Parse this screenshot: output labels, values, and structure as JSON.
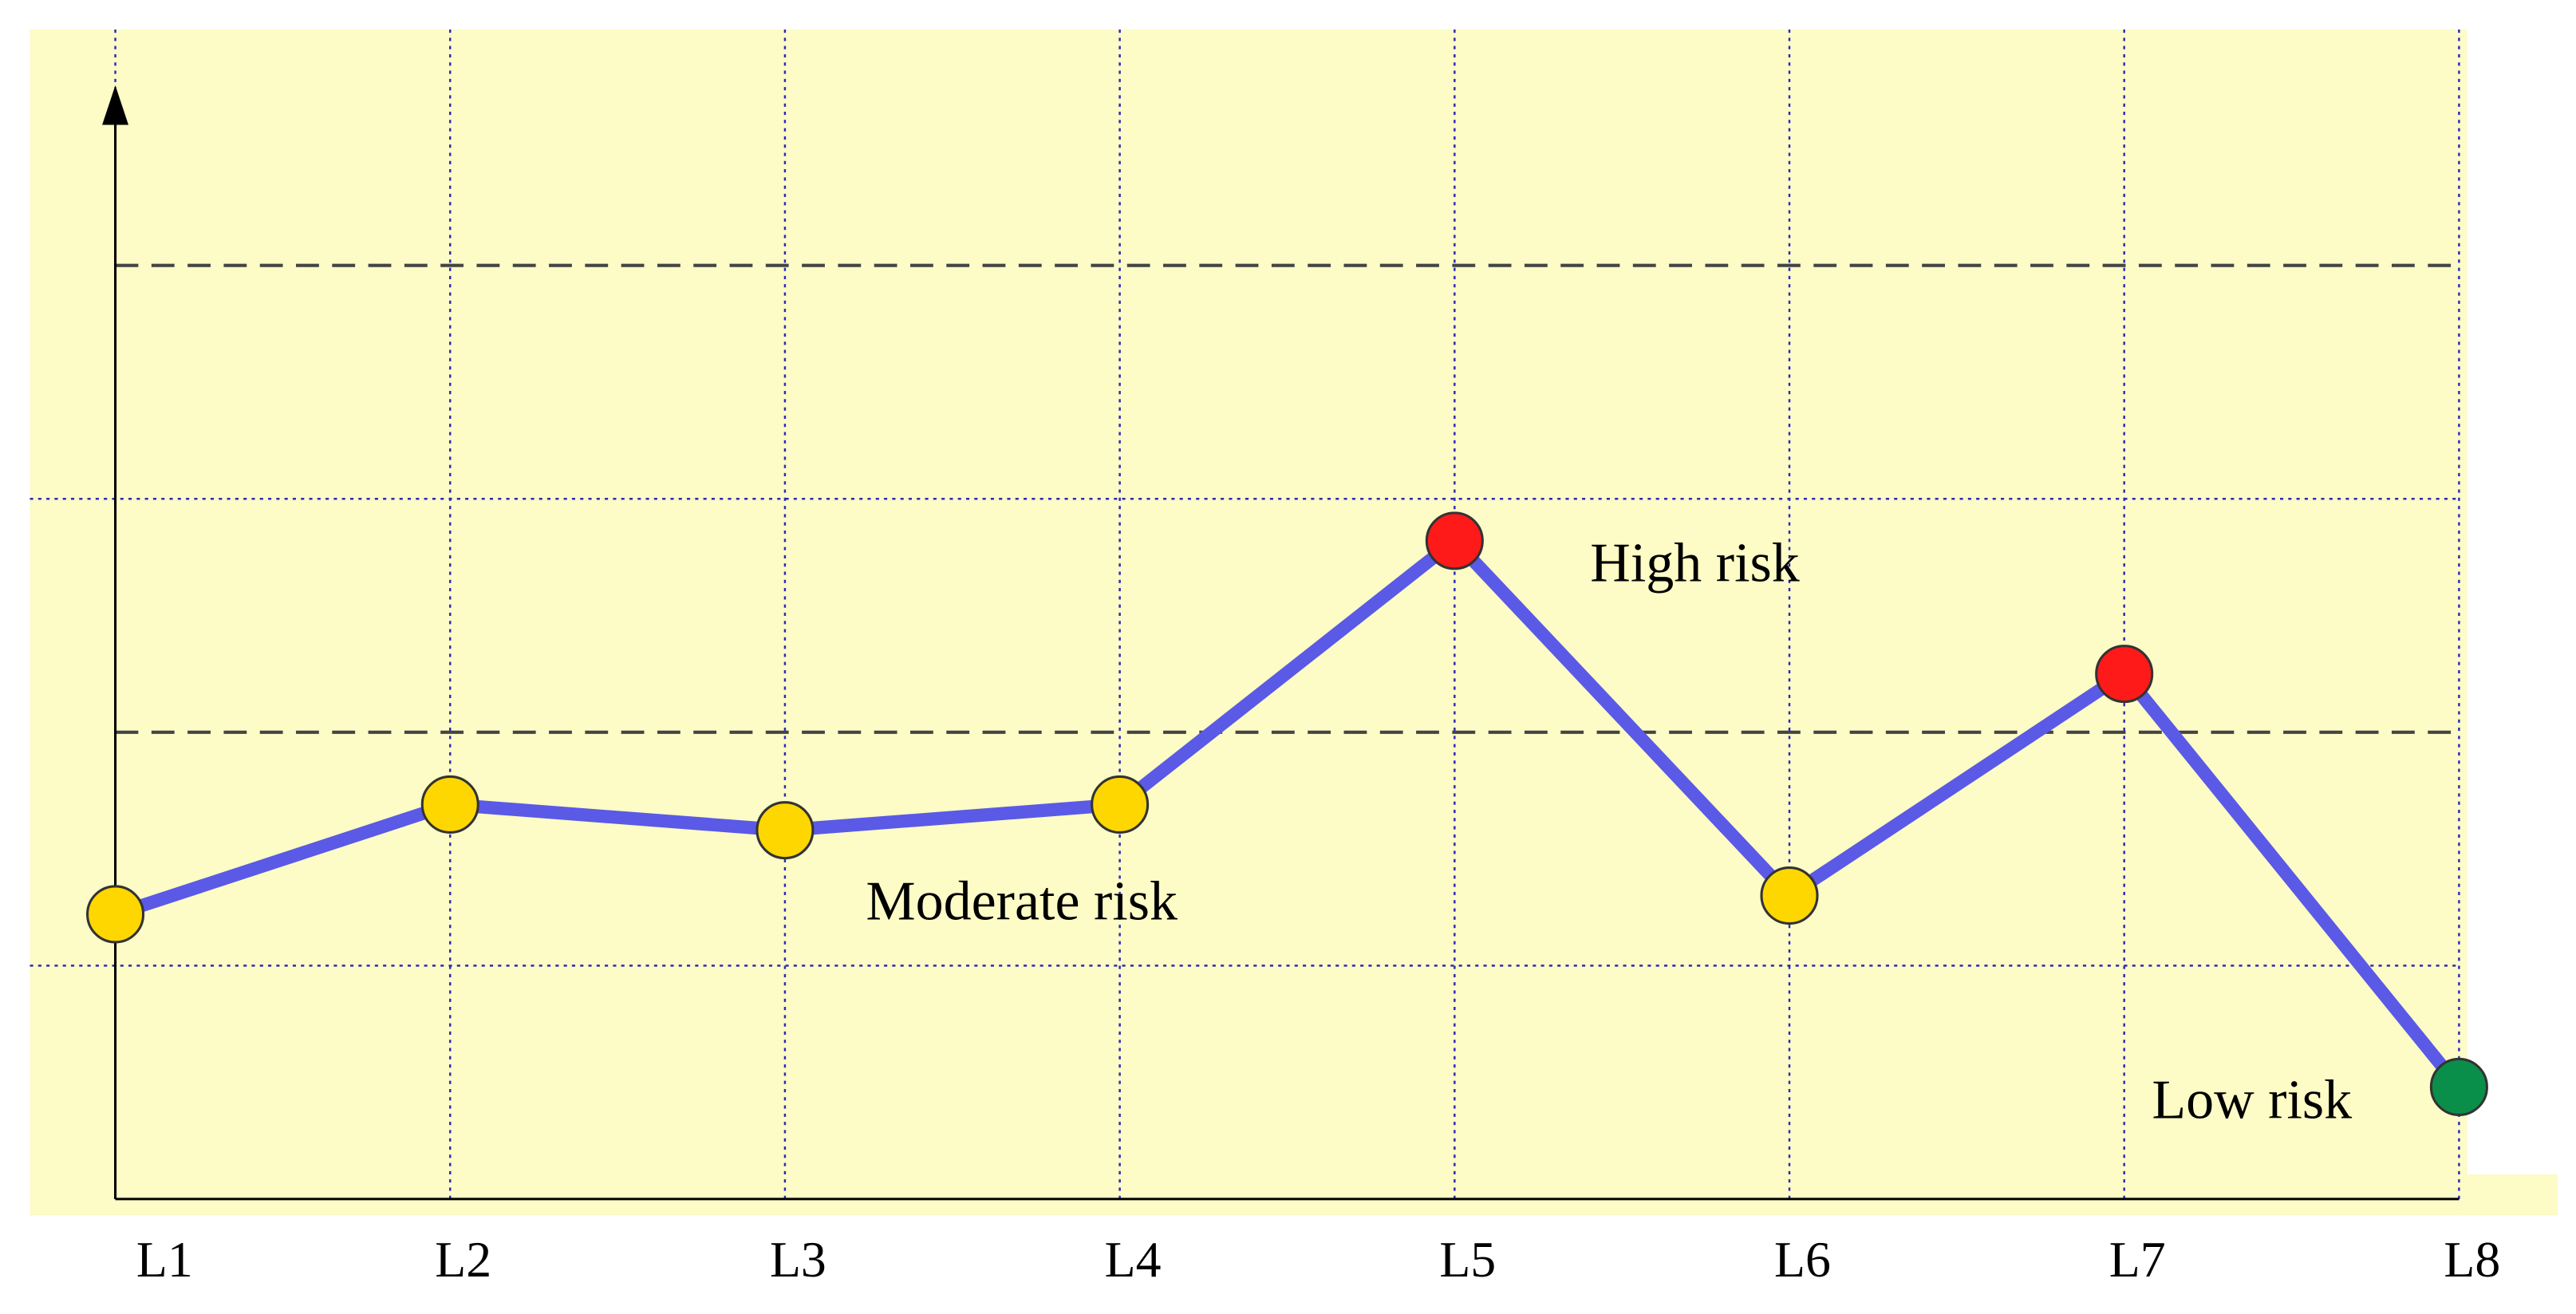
{
  "chart_data": {
    "type": "line",
    "categories": [
      "L1",
      "L2",
      "L3",
      "L4",
      "L5",
      "L6",
      "L7",
      "L8"
    ],
    "values": [
      1.22,
      1.69,
      1.58,
      1.69,
      2.82,
      1.3,
      2.25,
      0.48
    ],
    "color": "#5a5ae6",
    "point_colors": [
      "#ffd700",
      "#ffd700",
      "#ffd700",
      "#ffd700",
      "#ff1a1a",
      "#ffd700",
      "#ff1a1a",
      "#0a8f4a"
    ],
    "ylim": [
      0,
      4.75
    ],
    "dotted_grid": [
      1,
      3
    ],
    "dashed_thresholds": [
      2,
      4
    ],
    "annotations": [
      "High risk",
      "Moderate risk",
      "Low risk"
    ]
  }
}
